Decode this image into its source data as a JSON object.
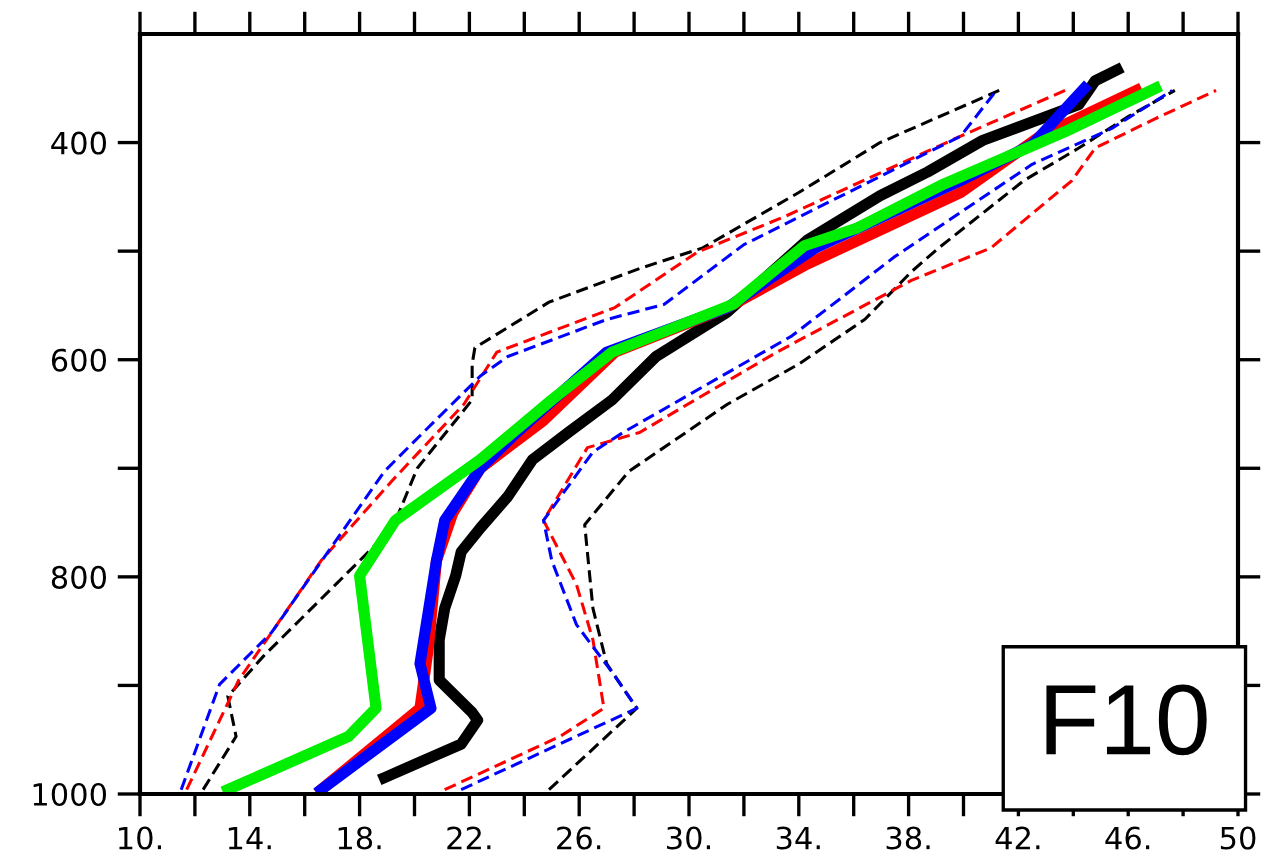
{
  "chart_data": {
    "type": "line",
    "xlim": [
      10,
      50
    ],
    "ylim": [
      1000,
      300
    ],
    "xticks": [
      {
        "value": 10,
        "label": "10."
      },
      {
        "value": 12,
        "label": null
      },
      {
        "value": 14,
        "label": "14."
      },
      {
        "value": 16,
        "label": null
      },
      {
        "value": 18,
        "label": "18."
      },
      {
        "value": 20,
        "label": null
      },
      {
        "value": 22,
        "label": "22."
      },
      {
        "value": 24,
        "label": null
      },
      {
        "value": 26,
        "label": "26."
      },
      {
        "value": 28,
        "label": null
      },
      {
        "value": 30,
        "label": "30."
      },
      {
        "value": 32,
        "label": null
      },
      {
        "value": 34,
        "label": "34."
      },
      {
        "value": 36,
        "label": null
      },
      {
        "value": 38,
        "label": "38."
      },
      {
        "value": 40,
        "label": null
      },
      {
        "value": 42,
        "label": "42."
      },
      {
        "value": 44,
        "label": null
      },
      {
        "value": 46,
        "label": "46."
      },
      {
        "value": 48,
        "label": null
      },
      {
        "value": 50,
        "label": "50"
      }
    ],
    "yticks": [
      {
        "value": 1000,
        "label": "1000"
      },
      {
        "value": 900,
        "label": null
      },
      {
        "value": 800,
        "label": "800"
      },
      {
        "value": 700,
        "label": null
      },
      {
        "value": 600,
        "label": "600"
      },
      {
        "value": 500,
        "label": null
      },
      {
        "value": 400,
        "label": "400"
      }
    ],
    "grid": false,
    "legend": false,
    "annotations": [
      "F10"
    ],
    "series": [
      {
        "color": "#000000",
        "line_style": "dashed",
        "x": [
          12.3,
          13.5,
          13.2,
          14.5,
          19.2,
          20.1,
          22.1,
          22.1,
          22.2,
          24.9,
          28.2,
          30.5,
          34.0,
          36.96,
          41.3
        ],
        "values": [
          996,
          947,
          910,
          873,
          755,
          700,
          637,
          604,
          589,
          547,
          516,
          497,
          446,
          400,
          352
        ]
      },
      {
        "color": "#ff0000",
        "line_style": "dashed",
        "x": [
          11.7,
          13.6,
          14.8,
          16.6,
          19.2,
          21.8,
          23.0,
          27.3,
          30.3,
          33.5,
          39.9,
          43.7
        ],
        "values": [
          996,
          895,
          851,
          785,
          711,
          641,
          593,
          552,
          501,
          468,
          394,
          352
        ]
      },
      {
        "color": "#0000ff",
        "line_style": "dashed",
        "x": [
          11.5,
          12.9,
          14.8,
          18.9,
          20.2,
          22.4,
          23.4,
          27.0,
          29.1,
          32.0,
          39.9,
          41.2
        ],
        "values": [
          996,
          899,
          851,
          703,
          670,
          615,
          597,
          563,
          549,
          494,
          394,
          352
        ]
      },
      {
        "color": "#000000",
        "line_style": "dashed",
        "x": [
          24.9,
          28.1,
          27.0,
          26.5,
          26.2,
          27.8,
          31.4,
          34.0,
          36.4,
          38.1,
          39.1,
          42.2,
          44.2,
          46.0,
          47.7
        ],
        "values": [
          996,
          921,
          880,
          829,
          752,
          703,
          641,
          604,
          563,
          519,
          497,
          435,
          405,
          376,
          352
        ]
      },
      {
        "color": "#ff0000",
        "line_style": "dashed",
        "x": [
          21.1,
          25.3,
          26.9,
          26.5,
          25.9,
          24.7,
          26.3,
          28.2,
          33.2,
          38.1,
          41.0,
          43.95,
          44.8,
          46.9,
          49.2
        ],
        "values": [
          996,
          947,
          921,
          858,
          807,
          748,
          681,
          667,
          593,
          527,
          497,
          435,
          405,
          379,
          352
        ]
      },
      {
        "color": "#0000ff",
        "line_style": "dashed",
        "x": [
          21.7,
          28.1,
          27.2,
          25.9,
          25.0,
          24.7,
          26.5,
          27.6,
          33.75,
          37.5,
          42.5,
          45.4,
          47.6
        ],
        "values": [
          996,
          921,
          888,
          844,
          785,
          748,
          685,
          667,
          578,
          505,
          420,
          387,
          352
        ]
      },
      {
        "color": "#000000",
        "line_style": "solid",
        "x": [
          18.9,
          21.7,
          22.3,
          22.1,
          20.9,
          20.9,
          21.1,
          21.5,
          21.7,
          22.4,
          23.4,
          24.3,
          25.6,
          27.2,
          28.8,
          31.4,
          34.3,
          36.96,
          38.7,
          40.7,
          44.2,
          44.8,
          45.6
        ],
        "values": [
          985,
          954,
          932,
          925,
          895,
          858,
          829,
          799,
          777,
          755,
          726,
          692,
          667,
          637,
          597,
          556,
          490,
          449,
          427,
          398,
          365,
          343,
          333
        ]
      },
      {
        "color": "#ff0000",
        "line_style": "solid",
        "x": [
          16.6,
          20.2,
          20.5,
          20.8,
          21.4,
          22.4,
          24.7,
          27.3,
          31.4,
          34.3,
          39.9,
          42.8,
          46.3
        ],
        "values": [
          996,
          921,
          866,
          785,
          741,
          700,
          656,
          593,
          552,
          512,
          446,
          394,
          352
        ]
      },
      {
        "color": "#0000ff",
        "line_style": "solid",
        "x": [
          16.6,
          20.6,
          20.2,
          20.8,
          21.1,
          22.4,
          23.6,
          27.0,
          31.4,
          34.6,
          39.9,
          42.5,
          44.4
        ],
        "values": [
          996,
          921,
          880,
          785,
          748,
          700,
          670,
          593,
          552,
          497,
          435,
          402,
          350
        ]
      },
      {
        "color": "#00ee00",
        "line_style": "solid",
        "x": [
          13.2,
          17.6,
          18.6,
          18.0,
          19.3,
          22.4,
          25.0,
          27.2,
          31.6,
          34.2,
          36.1,
          39.3,
          43.7,
          47.0
        ],
        "values": [
          996,
          947,
          921,
          799,
          748,
          692,
          637,
          593,
          549,
          495,
          479,
          438,
          390,
          350
        ]
      }
    ]
  }
}
